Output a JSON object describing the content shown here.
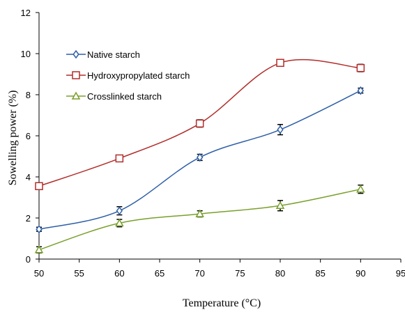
{
  "chart_data": {
    "type": "line",
    "title": "",
    "xlabel": "Temperature (°C)",
    "ylabel": "Sowelling power (%)",
    "x": [
      50,
      60,
      70,
      80,
      90
    ],
    "xlim": [
      50,
      95
    ],
    "ylim": [
      0,
      12
    ],
    "xticks": [
      "50",
      "55",
      "60",
      "65",
      "70",
      "75",
      "80",
      "85",
      "90",
      "95"
    ],
    "yticks": [
      "0",
      "2",
      "4",
      "6",
      "8",
      "10",
      "12"
    ],
    "grid": false,
    "legend_position": "top-left",
    "series": [
      {
        "name": "Native starch",
        "marker": "diamond",
        "color": "#2e5fa8",
        "values": [
          1.45,
          2.35,
          4.95,
          6.3,
          8.2
        ],
        "errors": [
          0.1,
          0.2,
          0.15,
          0.25,
          0.12
        ]
      },
      {
        "name": "Hydroxypropylated starch",
        "marker": "square",
        "color": "#b22d2b",
        "values": [
          3.55,
          4.9,
          6.6,
          9.55,
          9.3
        ],
        "errors": [
          0.1,
          0.12,
          0.18,
          0.15,
          0.18
        ]
      },
      {
        "name": "Crosslinked starch",
        "marker": "triangle",
        "color": "#78a02a",
        "values": [
          0.45,
          1.75,
          2.2,
          2.6,
          3.4
        ],
        "errors": [
          0.15,
          0.18,
          0.15,
          0.25,
          0.2
        ]
      }
    ]
  }
}
